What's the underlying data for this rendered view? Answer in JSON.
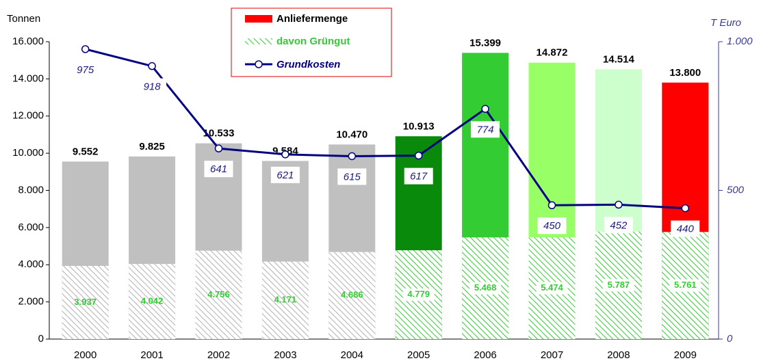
{
  "chart_data": {
    "type": "bar",
    "categories": [
      "2000",
      "2001",
      "2002",
      "2003",
      "2004",
      "2005",
      "2006",
      "2007",
      "2008",
      "2009"
    ],
    "y_label": "Tonnen",
    "y2_label": "T Euro",
    "series": [
      {
        "name": "Anliefermenge",
        "color": "#ff0000",
        "colors": [
          "#c0c0c0",
          "#c0c0c0",
          "#c0c0c0",
          "#c0c0c0",
          "#c0c0c0",
          "#0a8a0a",
          "#33cc33",
          "#99ff66",
          "#ccffcc",
          "#ff0000"
        ],
        "values": [
          9552,
          9825,
          10533,
          9584,
          10470,
          10913,
          15399,
          14872,
          14514,
          13800
        ],
        "value_labels": [
          "9.552",
          "9.825",
          "10.533",
          "9.584",
          "10.470",
          "10.913",
          "15.399",
          "14.872",
          "14.514",
          "13.800"
        ]
      },
      {
        "name": "davon Grüngut",
        "color": "#33cc33",
        "colors": [
          "#b0b0b0",
          "#b0b0b0",
          "#b0b0b0",
          "#b0b0b0",
          "#b0b0b0",
          "#33cc33",
          "#33cc33",
          "#33cc33",
          "#33cc33",
          "#33cc33"
        ],
        "values": [
          3937,
          4042,
          4756,
          4171,
          4686,
          4779,
          5468,
          5474,
          5787,
          5761
        ],
        "value_labels": [
          "3.937",
          "4.042",
          "4.756",
          "4.171",
          "4.686",
          "4.779",
          "5.468",
          "5.474",
          "5.787",
          "5.761"
        ]
      },
      {
        "name": "Grundkosten",
        "type": "line",
        "axis": "y2",
        "color": "#000080",
        "values": [
          975,
          918,
          641,
          621,
          615,
          617,
          774,
          450,
          452,
          440
        ]
      }
    ],
    "ylim": [
      0,
      16000
    ],
    "yticks": [
      0,
      {
        "value": 2000,
        "label": "2.000"
      },
      {
        "value": 4000,
        "label": "4.000"
      },
      {
        "value": 6000,
        "label": "6.000"
      },
      {
        "value": 8000,
        "label": "8.000"
      },
      {
        "value": 10000,
        "label": "10.000"
      },
      {
        "value": 12000,
        "label": "12.000"
      },
      {
        "value": 14000,
        "label": "14.000"
      },
      {
        "value": 16000,
        "label": "16.000"
      }
    ],
    "y2lim": [
      0,
      1000
    ],
    "y2ticks": [
      0,
      500,
      {
        "value": 1000,
        "label": "1.000"
      }
    ]
  }
}
